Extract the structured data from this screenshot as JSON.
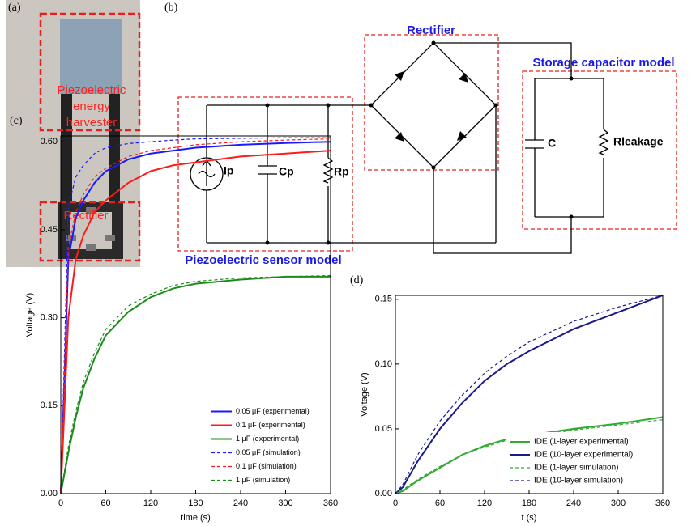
{
  "photo": {
    "panel_label": "(a)",
    "harvester_label_lines": [
      "Piezoelectric",
      "energy",
      "harvester"
    ],
    "rectifier_label": "Rectifier"
  },
  "circuit": {
    "panel_label": "(b)",
    "block_labels": [
      "Rectifier",
      "Storage capacitor model",
      "Piezoelectric sensor model"
    ],
    "component_labels": [
      "Ip",
      "Cp",
      "Rp",
      "C",
      "Rleakage"
    ]
  },
  "chart_data": [
    {
      "type": "line",
      "panel_label": "(c)",
      "xlabel": "time (s)",
      "ylabel": "Voltage (V)",
      "x": [
        0,
        10,
        20,
        30,
        45,
        60,
        90,
        120,
        150,
        180,
        240,
        300,
        360
      ],
      "series": [
        {
          "name": "0.05 μF (experimental)",
          "color": "#1a1aff",
          "dashed": false,
          "values": [
            0,
            0.4,
            0.47,
            0.5,
            0.53,
            0.55,
            0.57,
            0.58,
            0.585,
            0.59,
            0.595,
            0.598,
            0.6
          ]
        },
        {
          "name": "0.1 μF (experimental)",
          "color": "#ff1a1a",
          "dashed": false,
          "values": [
            0,
            0.3,
            0.4,
            0.44,
            0.48,
            0.5,
            0.53,
            0.55,
            0.56,
            0.565,
            0.575,
            0.58,
            0.585
          ]
        },
        {
          "name": "1 μF (experimental)",
          "color": "#1a8c1a",
          "dashed": false,
          "values": [
            0,
            0.07,
            0.13,
            0.18,
            0.23,
            0.27,
            0.31,
            0.335,
            0.35,
            0.358,
            0.365,
            0.37,
            0.37
          ]
        },
        {
          "name": "0.05 μF (simulation)",
          "color": "#1a1aff",
          "dashed": true,
          "values": [
            0,
            0.49,
            0.54,
            0.56,
            0.58,
            0.59,
            0.597,
            0.6,
            0.603,
            0.605,
            0.606,
            0.607,
            0.607
          ]
        },
        {
          "name": "0.1 μF (simulation)",
          "color": "#ff1a1a",
          "dashed": true,
          "values": [
            0,
            0.42,
            0.48,
            0.51,
            0.54,
            0.555,
            0.575,
            0.585,
            0.59,
            0.595,
            0.6,
            0.603,
            0.605
          ]
        },
        {
          "name": "1 μF (simulation)",
          "color": "#1a8c1a",
          "dashed": true,
          "values": [
            0,
            0.08,
            0.14,
            0.19,
            0.24,
            0.28,
            0.32,
            0.34,
            0.355,
            0.362,
            0.368,
            0.37,
            0.372
          ]
        }
      ],
      "xlim": [
        0,
        360
      ],
      "ylim": [
        0,
        0.61
      ],
      "xticks": [
        0,
        60,
        120,
        180,
        240,
        300,
        360
      ],
      "yticks": [
        {
          "value": 0,
          "label": "0.00"
        },
        {
          "value": 0.15,
          "label": "0.15"
        },
        {
          "value": 0.3,
          "label": "0.30"
        },
        {
          "value": 0.45,
          "label": "0.45"
        },
        {
          "value": 0.6,
          "label": "0.60"
        }
      ],
      "legend": "lower right"
    },
    {
      "type": "line",
      "panel_label": "(d)",
      "xlabel": "t (s)",
      "ylabel": "Voltage (V)",
      "x": [
        0,
        10,
        30,
        60,
        90,
        120,
        150,
        180,
        240,
        300,
        360
      ],
      "series": [
        {
          "name": "IDE (1-layer experimental)",
          "color": "#33aa33",
          "dashed": false,
          "values": [
            0,
            0.002,
            0.01,
            0.02,
            0.03,
            0.037,
            0.042,
            0.045,
            0.05,
            0.054,
            0.059
          ]
        },
        {
          "name": "IDE (10-layer experimental)",
          "color": "#1a1a8c",
          "dashed": false,
          "values": [
            0,
            0.005,
            0.025,
            0.05,
            0.07,
            0.087,
            0.1,
            0.11,
            0.127,
            0.14,
            0.153
          ]
        },
        {
          "name": "IDE (1-layer simulation)",
          "color": "#33aa33",
          "dashed": true,
          "values": [
            0,
            0.003,
            0.011,
            0.021,
            0.03,
            0.036,
            0.041,
            0.044,
            0.049,
            0.053,
            0.057
          ]
        },
        {
          "name": "IDE (10-layer simulation)",
          "color": "#1a1a8c",
          "dashed": true,
          "values": [
            0,
            0.007,
            0.03,
            0.056,
            0.076,
            0.093,
            0.106,
            0.117,
            0.133,
            0.144,
            0.153
          ]
        }
      ],
      "xlim": [
        0,
        360
      ],
      "ylim": [
        0,
        0.153
      ],
      "xticks": [
        0,
        60,
        120,
        180,
        240,
        300,
        360
      ],
      "yticks": [
        {
          "value": 0,
          "label": "0.00"
        },
        {
          "value": 0.05,
          "label": "0.05"
        },
        {
          "value": 0.1,
          "label": "0.10"
        },
        {
          "value": 0.15,
          "label": "0.15"
        }
      ],
      "legend": "lower right"
    }
  ]
}
